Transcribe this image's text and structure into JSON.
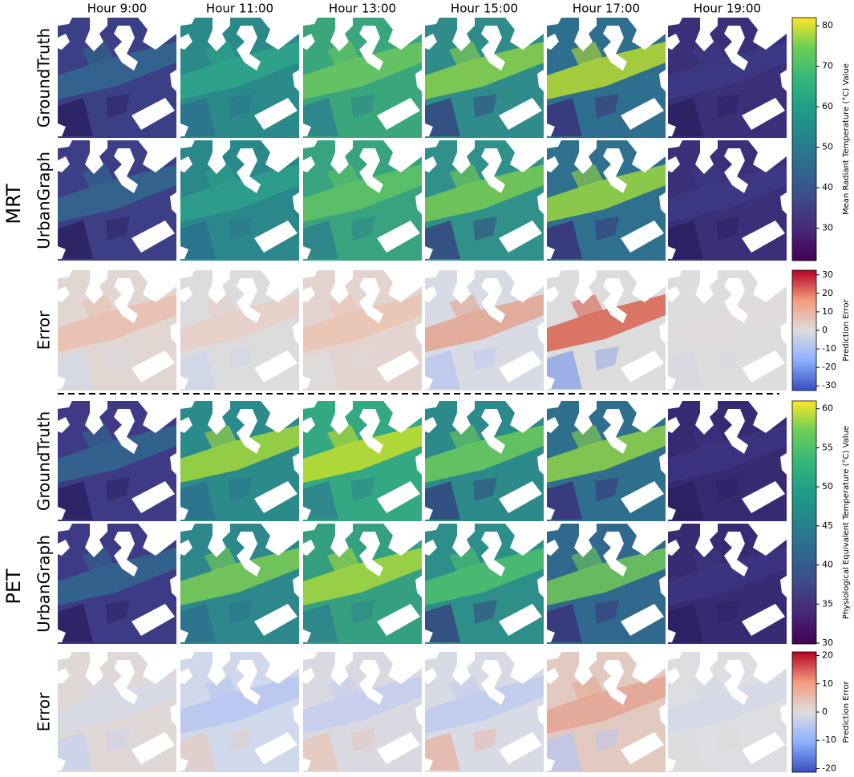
{
  "columns": [
    "Hour 9:00",
    "Hour 11:00",
    "Hour 13:00",
    "Hour 15:00",
    "Hour 17:00",
    "Hour 19:00"
  ],
  "groups": [
    {
      "label": "MRT",
      "rows": [
        "GroundTruth",
        "UrbanGraph",
        "Error"
      ],
      "colorbars": [
        {
          "label": "Mean Radiant Temperature (°C) Value",
          "colormap": "viridis",
          "lim": [
            22,
            82
          ],
          "ticks": [
            30,
            40,
            50,
            60,
            70,
            80
          ]
        },
        {
          "label": "Prediction Error",
          "colormap": "coolwarm",
          "lim": [
            -32.5,
            32.5
          ],
          "ticks": [
            -30,
            -20,
            -10,
            0,
            10,
            20,
            30
          ]
        }
      ]
    },
    {
      "label": "PET",
      "rows": [
        "GroundTruth",
        "UrbanGraph",
        "Error"
      ],
      "colorbars": [
        {
          "label": "Physiological Equivalent Temperature (°C) Value",
          "colormap": "viridis",
          "lim": [
            29.9,
            61
          ],
          "ticks": [
            30,
            35,
            40,
            45,
            50,
            55,
            60
          ]
        },
        {
          "label": "Prediction Error",
          "colormap": "coolwarm",
          "lim": [
            -21.3,
            21.3
          ],
          "ticks": [
            -20,
            -10,
            0,
            10,
            20
          ]
        }
      ]
    }
  ]
}
